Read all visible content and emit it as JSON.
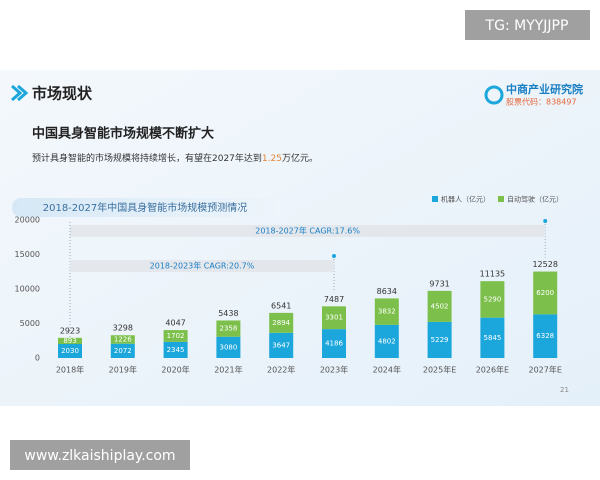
{
  "watermark_top": "TG: MYYJJPP",
  "watermark_bottom": "www.zlkaishiplay.com",
  "slide": {
    "section": "市场现状",
    "brand": "中商产业研究院",
    "stock_code": "股票代码：838497",
    "heading": "中国具身智能市场规模不断扩大",
    "summary": {
      "before": "预计具身智能的市场规模将持续增长，有望在2027年达到",
      "highlight": "1.25",
      "after": "万亿元。"
    },
    "page_number": "21"
  },
  "chart_data": {
    "type": "bar",
    "stacked": true,
    "title": "2018-2027年中国具身智能市场规模预测情况",
    "categories": [
      "2018年",
      "2019年",
      "2020年",
      "2021年",
      "2022年",
      "2023年",
      "2024年",
      "2025年E",
      "2026年E",
      "2027年E"
    ],
    "series": [
      {
        "name": "机器人（亿元）",
        "color": "#1ba6dc",
        "values": [
          2030,
          2072,
          2345,
          3080,
          3647,
          4186,
          4802,
          5229,
          5845,
          6328
        ]
      },
      {
        "name": "自动驾驶（亿元）",
        "color": "#7cc04b",
        "values": [
          893,
          1226,
          1702,
          2358,
          2894,
          3301,
          3832,
          4502,
          5290,
          6200
        ]
      }
    ],
    "totals": [
      2923,
      3298,
      4047,
      5438,
      6541,
      7487,
      8634,
      9731,
      11135,
      12528
    ],
    "annotations": [
      "2018-2027年 CAGR:17.6%",
      "2018-2023年 CAGR:20.7%"
    ],
    "ylim": [
      0,
      20000
    ],
    "yticks": [
      0,
      5000,
      10000,
      15000,
      20000
    ],
    "grid": false
  }
}
